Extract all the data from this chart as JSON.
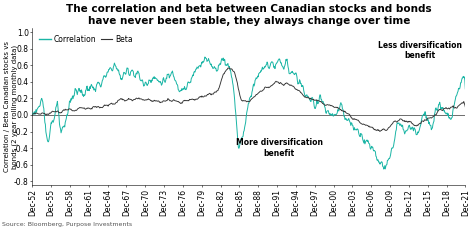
{
  "title": "The correlation and beta between Canadian stocks and bonds\nhave never been stable, they always change over time",
  "ylabel": "Correlation / Beta Canadian stocks vs\nbonds (2 year rolling monthly data)",
  "source": "Source: Bloomberg, Purpose Investments",
  "ylim": [
    -0.85,
    1.05
  ],
  "yticks": [
    -0.8,
    -0.6,
    -0.4,
    -0.2,
    0.0,
    0.2,
    0.4,
    0.6,
    0.8,
    1.0
  ],
  "xtick_labels": [
    "Dec-52",
    "Dec-55",
    "Dec-58",
    "Dec-61",
    "Dec-64",
    "Dec-67",
    "Dec-70",
    "Dec-73",
    "Dec-76",
    "Dec-79",
    "Dec-82",
    "Dec-85",
    "Dec-88",
    "Dec-91",
    "Dec-94",
    "Dec-97",
    "Dec-00",
    "Dec-03",
    "Dec-06",
    "Dec-09",
    "Dec-12",
    "Dec-15",
    "Dec-18",
    "Dec-21"
  ],
  "corr_color": "#1ab5a5",
  "beta_color": "#333333",
  "legend_labels": [
    "Correlation",
    "Beta"
  ],
  "annot_less": "Less diversification\nbenefit",
  "annot_more": "More diversification\nbenefit",
  "background_color": "#ffffff",
  "title_fontsize": 7.5,
  "tick_fontsize": 5.5,
  "ylabel_fontsize": 5.0,
  "source_fontsize": 4.5
}
